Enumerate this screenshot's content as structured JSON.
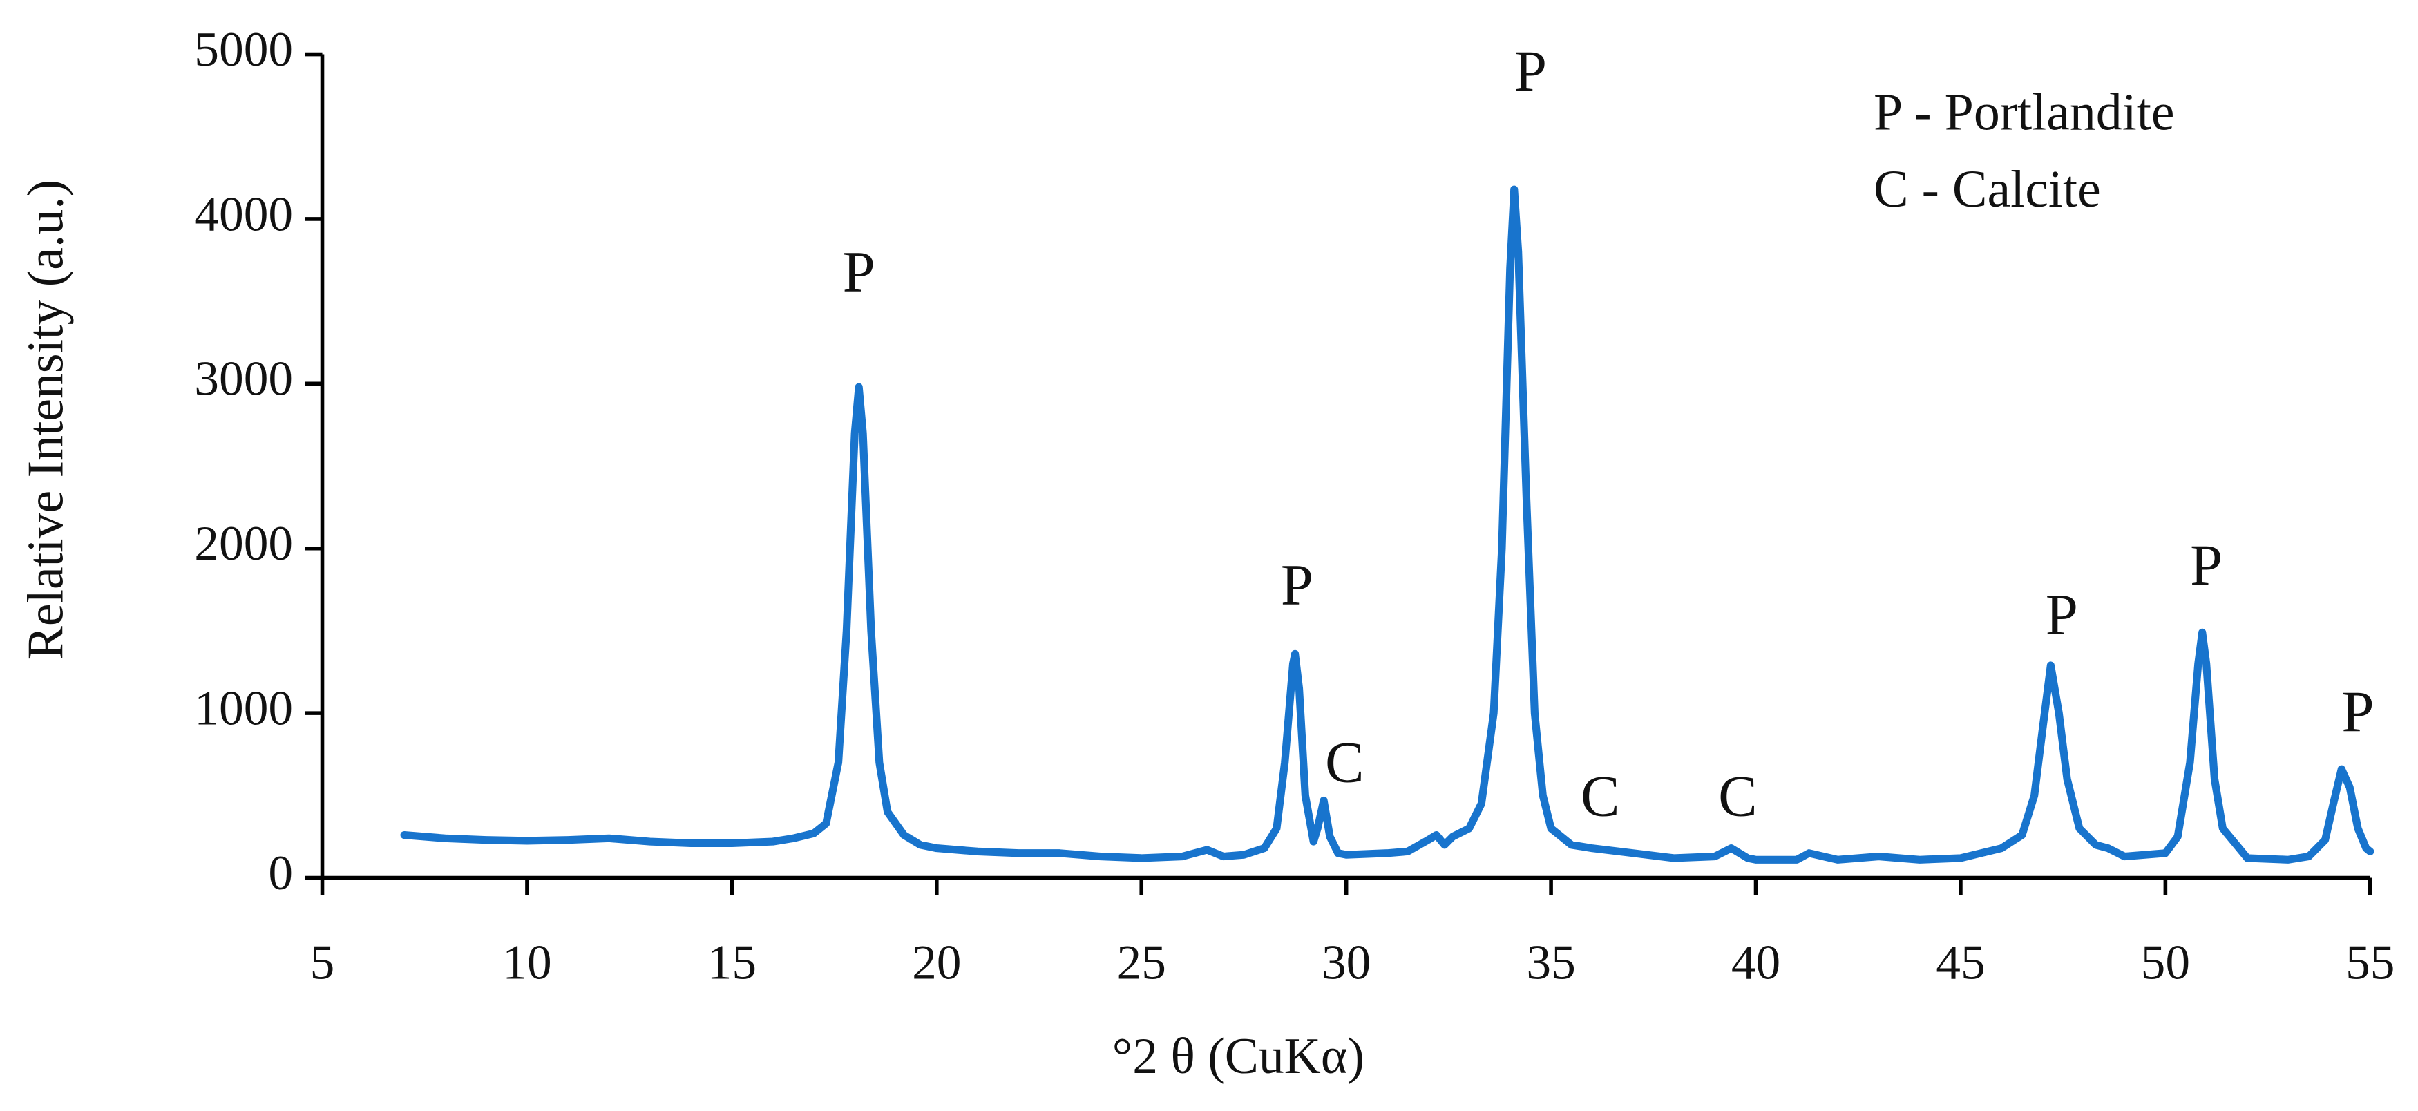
{
  "chart_data": {
    "type": "line",
    "xlabel": "°2 θ (CuKα)",
    "ylabel": "Relative Intensity (a.u.)",
    "color": "#1874cd",
    "x": [
      7,
      8,
      9,
      10,
      11,
      12,
      13,
      14,
      15,
      16,
      16.5,
      17,
      17.3,
      17.6,
      17.8,
      18.0,
      18.1,
      18.2,
      18.4,
      18.6,
      18.8,
      19.2,
      19.6,
      20,
      21,
      22,
      23,
      24,
      25,
      26,
      26.6,
      27,
      27.5,
      28,
      28.3,
      28.5,
      28.7,
      28.75,
      28.85,
      29.0,
      29.2,
      29.3,
      29.45,
      29.6,
      29.8,
      30,
      31,
      31.5,
      32,
      32.2,
      32.4,
      32.6,
      33,
      33.3,
      33.6,
      33.8,
      34.0,
      34.1,
      34.2,
      34.4,
      34.6,
      34.8,
      35,
      35.5,
      36,
      37,
      38,
      39,
      39.4,
      39.8,
      40,
      41,
      41.3,
      42,
      43,
      44,
      45,
      45.5,
      46,
      46.5,
      46.8,
      47.0,
      47.2,
      47.4,
      47.6,
      47.9,
      48.3,
      48.6,
      49,
      50,
      50.3,
      50.6,
      50.8,
      50.9,
      51.0,
      51.2,
      51.4,
      51.8,
      52,
      53,
      53.5,
      53.9,
      54.1,
      54.3,
      54.5,
      54.7,
      54.9,
      55
    ],
    "values": [
      260,
      240,
      230,
      225,
      230,
      240,
      220,
      210,
      210,
      220,
      240,
      270,
      330,
      700,
      1500,
      2700,
      2980,
      2700,
      1500,
      700,
      400,
      260,
      200,
      180,
      160,
      150,
      150,
      130,
      120,
      130,
      170,
      130,
      140,
      180,
      300,
      700,
      1300,
      1360,
      1150,
      500,
      220,
      300,
      470,
      250,
      150,
      140,
      150,
      160,
      230,
      260,
      200,
      250,
      300,
      450,
      1000,
      2000,
      3700,
      4180,
      3800,
      2300,
      1000,
      500,
      300,
      200,
      180,
      150,
      120,
      130,
      180,
      120,
      110,
      110,
      150,
      110,
      130,
      110,
      120,
      150,
      180,
      260,
      500,
      900,
      1290,
      1000,
      600,
      300,
      200,
      180,
      130,
      150,
      250,
      700,
      1300,
      1490,
      1300,
      600,
      300,
      180,
      120,
      110,
      130,
      230,
      450,
      660,
      550,
      300,
      180,
      160
    ],
    "xlim": [
      5,
      55
    ],
    "xticks": [
      5,
      10,
      15,
      20,
      25,
      30,
      35,
      40,
      45,
      50,
      55
    ],
    "ylim": [
      0,
      5000
    ],
    "yticks": [
      0,
      1000,
      2000,
      3000,
      4000,
      5000
    ],
    "annotations": [
      {
        "text": "P",
        "x": 18.1,
        "y": 3640
      },
      {
        "text": "P",
        "x": 28.8,
        "y": 1740
      },
      {
        "text": "C",
        "x": 29.96,
        "y": 665
      },
      {
        "text": "P",
        "x": 34.5,
        "y": 4860
      },
      {
        "text": "C",
        "x": 36.2,
        "y": 460
      },
      {
        "text": "C",
        "x": 39.56,
        "y": 460
      },
      {
        "text": "P",
        "x": 47.47,
        "y": 1560
      },
      {
        "text": "P",
        "x": 51.0,
        "y": 1860
      },
      {
        "text": "P",
        "x": 54.7,
        "y": 970
      }
    ],
    "notes": [
      "P - Portlandite",
      "C - Calcite"
    ]
  }
}
